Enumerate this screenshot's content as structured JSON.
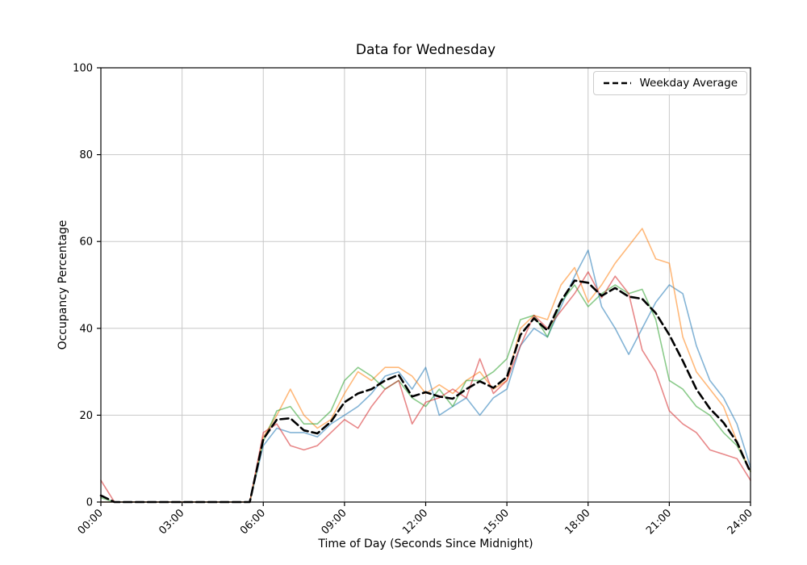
{
  "chart_data": {
    "type": "line",
    "title": "Data for Wednesday",
    "xlabel": "Time of Day (Seconds Since Midnight)",
    "ylabel": "Occupancy Percentage",
    "xlim": [
      0,
      24
    ],
    "ylim": [
      0,
      100
    ],
    "grid": true,
    "colors": {
      "grid": "#c8c8c8",
      "axis": "#000000",
      "background": "#ffffff"
    },
    "x_ticks": {
      "values": [
        0,
        3,
        6,
        9,
        12,
        15,
        18,
        21,
        24
      ],
      "labels": [
        "00:00",
        "03:00",
        "06:00",
        "09:00",
        "12:00",
        "15:00",
        "18:00",
        "21:00",
        "24:00"
      ],
      "rotation": 45
    },
    "y_ticks": {
      "values": [
        0,
        20,
        40,
        60,
        80,
        100
      ],
      "labels": [
        "0",
        "20",
        "40",
        "60",
        "80",
        "100"
      ]
    },
    "legend": {
      "position": "top-right",
      "entries": [
        {
          "label": "Weekday Average",
          "color": "#000000",
          "style": "dashed"
        }
      ]
    },
    "x": [
      0,
      0.5,
      1,
      1.5,
      2,
      2.5,
      3,
      3.5,
      4,
      4.5,
      5,
      5.5,
      6,
      6.5,
      7,
      7.5,
      8,
      8.5,
      9,
      9.5,
      10,
      10.5,
      11,
      11.5,
      12,
      12.5,
      13,
      13.5,
      14,
      14.5,
      15,
      15.5,
      16,
      16.5,
      17,
      17.5,
      18,
      18.5,
      19,
      19.5,
      20,
      20.5,
      21,
      21.5,
      22,
      22.5,
      23,
      23.5,
      24
    ],
    "series": [
      {
        "name": "day-series-1",
        "color": "#1f77b4",
        "opacity": 0.55,
        "width": 1.6,
        "style": "solid",
        "values": [
          0,
          0,
          0,
          0,
          0,
          0,
          0,
          0,
          0,
          0,
          0,
          0,
          13,
          17,
          16,
          16,
          15,
          18,
          20,
          22,
          25,
          29,
          30,
          26,
          31,
          20,
          22,
          24,
          20,
          24,
          26,
          36,
          40,
          38,
          45,
          52,
          58,
          45,
          40,
          34,
          40,
          46,
          50,
          48,
          36,
          28,
          24,
          18,
          8
        ]
      },
      {
        "name": "day-series-2",
        "color": "#ff7f0e",
        "opacity": 0.55,
        "width": 1.6,
        "style": "solid",
        "values": [
          0,
          0,
          0,
          0,
          0,
          0,
          0,
          0,
          0,
          0,
          0,
          0,
          15,
          20,
          26,
          20,
          17,
          19,
          25,
          30,
          28,
          31,
          31,
          29,
          25,
          27,
          25,
          28,
          30,
          26,
          28,
          40,
          43,
          42,
          50,
          54,
          46,
          50,
          55,
          59,
          63,
          56,
          55,
          38,
          30,
          26,
          22,
          14,
          7
        ]
      },
      {
        "name": "day-series-3",
        "color": "#2ca02c",
        "opacity": 0.55,
        "width": 1.6,
        "style": "solid",
        "values": [
          1,
          0,
          0,
          0,
          0,
          0,
          0,
          0,
          0,
          0,
          0,
          0,
          14,
          21,
          22,
          18,
          18,
          21,
          28,
          31,
          29,
          26,
          28,
          24,
          22,
          26,
          22,
          28,
          28,
          30,
          33,
          42,
          43,
          38,
          46,
          50,
          45,
          48,
          50,
          48,
          49,
          42,
          28,
          26,
          22,
          20,
          16,
          13,
          7
        ]
      },
      {
        "name": "day-series-4",
        "color": "#d62728",
        "opacity": 0.55,
        "width": 1.6,
        "style": "solid",
        "values": [
          5,
          0,
          0,
          0,
          0,
          0,
          0,
          0,
          0,
          0,
          0,
          0,
          16,
          18,
          13,
          12,
          13,
          16,
          19,
          17,
          22,
          26,
          28,
          18,
          23,
          24,
          26,
          24,
          33,
          25,
          28,
          36,
          43,
          40,
          44,
          48,
          53,
          47,
          52,
          48,
          35,
          30,
          21,
          18,
          16,
          12,
          11,
          10,
          5
        ]
      },
      {
        "name": "weekday-average",
        "color": "#000000",
        "opacity": 1,
        "width": 2.6,
        "style": "dashed",
        "values": [
          1.5,
          0,
          0,
          0,
          0,
          0,
          0,
          0,
          0,
          0,
          0,
          0,
          14.5,
          19,
          19.3,
          16.5,
          15.8,
          18.5,
          23,
          25,
          26,
          28,
          29.3,
          24.3,
          25.3,
          24.3,
          23.8,
          26,
          27.8,
          26.3,
          28.8,
          38.5,
          42.3,
          39.5,
          46.3,
          51,
          50.5,
          47.5,
          49.3,
          47.3,
          46.8,
          43.5,
          38.5,
          32.5,
          26,
          21.5,
          18.3,
          13.8,
          6.8
        ]
      }
    ]
  }
}
